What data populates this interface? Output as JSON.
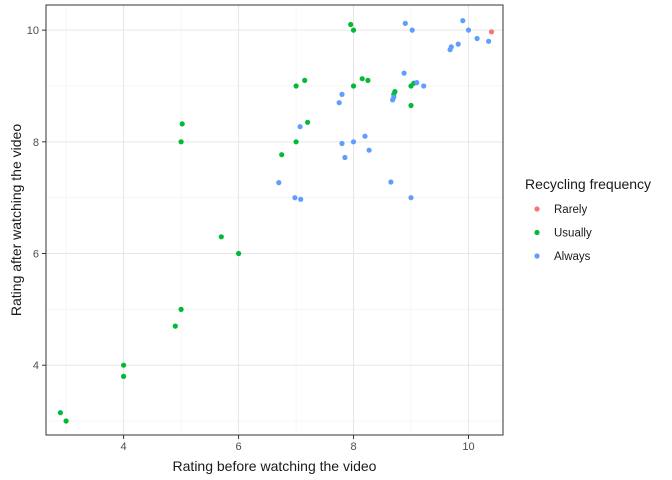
{
  "chart_data": {
    "type": "scatter",
    "title": "",
    "xlabel": "Rating before watching the video",
    "ylabel": "Rating after watching the video",
    "xlim": [
      2.65,
      10.6
    ],
    "ylim": [
      2.75,
      10.45
    ],
    "x_ticks": [
      4,
      6,
      8,
      10
    ],
    "y_ticks": [
      4,
      6,
      8,
      10
    ],
    "grid": true,
    "legend": {
      "title": "Recycling frequency",
      "placement": "right"
    },
    "series": [
      {
        "name": "Rarely",
        "color": "#F8766D",
        "points": [
          [
            10.4,
            9.97
          ]
        ]
      },
      {
        "name": "Usually",
        "color": "#00BA38",
        "points": [
          [
            2.9,
            3.15
          ],
          [
            3.0,
            3.0
          ],
          [
            4.0,
            4.0
          ],
          [
            4.0,
            3.8
          ],
          [
            4.9,
            4.7
          ],
          [
            5.0,
            5.0
          ],
          [
            5.0,
            8.0
          ],
          [
            5.02,
            8.32
          ],
          [
            5.7,
            6.3
          ],
          [
            6.0,
            6.0
          ],
          [
            6.75,
            7.77
          ],
          [
            7.0,
            8.0
          ],
          [
            7.0,
            9.0
          ],
          [
            7.15,
            9.1
          ],
          [
            7.2,
            8.35
          ],
          [
            7.95,
            10.1
          ],
          [
            8.0,
            10.0
          ],
          [
            8.0,
            9.0
          ],
          [
            8.15,
            9.13
          ],
          [
            8.25,
            9.1
          ],
          [
            8.7,
            8.85
          ],
          [
            8.72,
            8.9
          ],
          [
            9.0,
            9.0
          ],
          [
            9.0,
            8.65
          ],
          [
            9.05,
            9.05
          ]
        ]
      },
      {
        "name": "Always",
        "color": "#619CFF",
        "points": [
          [
            6.7,
            7.27
          ],
          [
            6.98,
            7.0
          ],
          [
            7.07,
            8.27
          ],
          [
            7.08,
            6.97
          ],
          [
            7.75,
            8.7
          ],
          [
            7.8,
            8.85
          ],
          [
            7.8,
            7.97
          ],
          [
            7.85,
            7.72
          ],
          [
            8.0,
            8.0
          ],
          [
            8.2,
            8.1
          ],
          [
            8.27,
            7.85
          ],
          [
            8.65,
            7.28
          ],
          [
            8.68,
            8.75
          ],
          [
            8.7,
            8.8
          ],
          [
            8.88,
            9.23
          ],
          [
            8.9,
            10.12
          ],
          [
            9.0,
            7.0
          ],
          [
            9.02,
            10.0
          ],
          [
            9.1,
            9.06
          ],
          [
            9.22,
            9.0
          ],
          [
            9.68,
            9.65
          ],
          [
            9.7,
            9.7
          ],
          [
            9.82,
            9.75
          ],
          [
            9.9,
            10.17
          ],
          [
            10.0,
            10.0
          ],
          [
            10.15,
            9.85
          ],
          [
            10.35,
            9.8
          ]
        ]
      }
    ]
  }
}
